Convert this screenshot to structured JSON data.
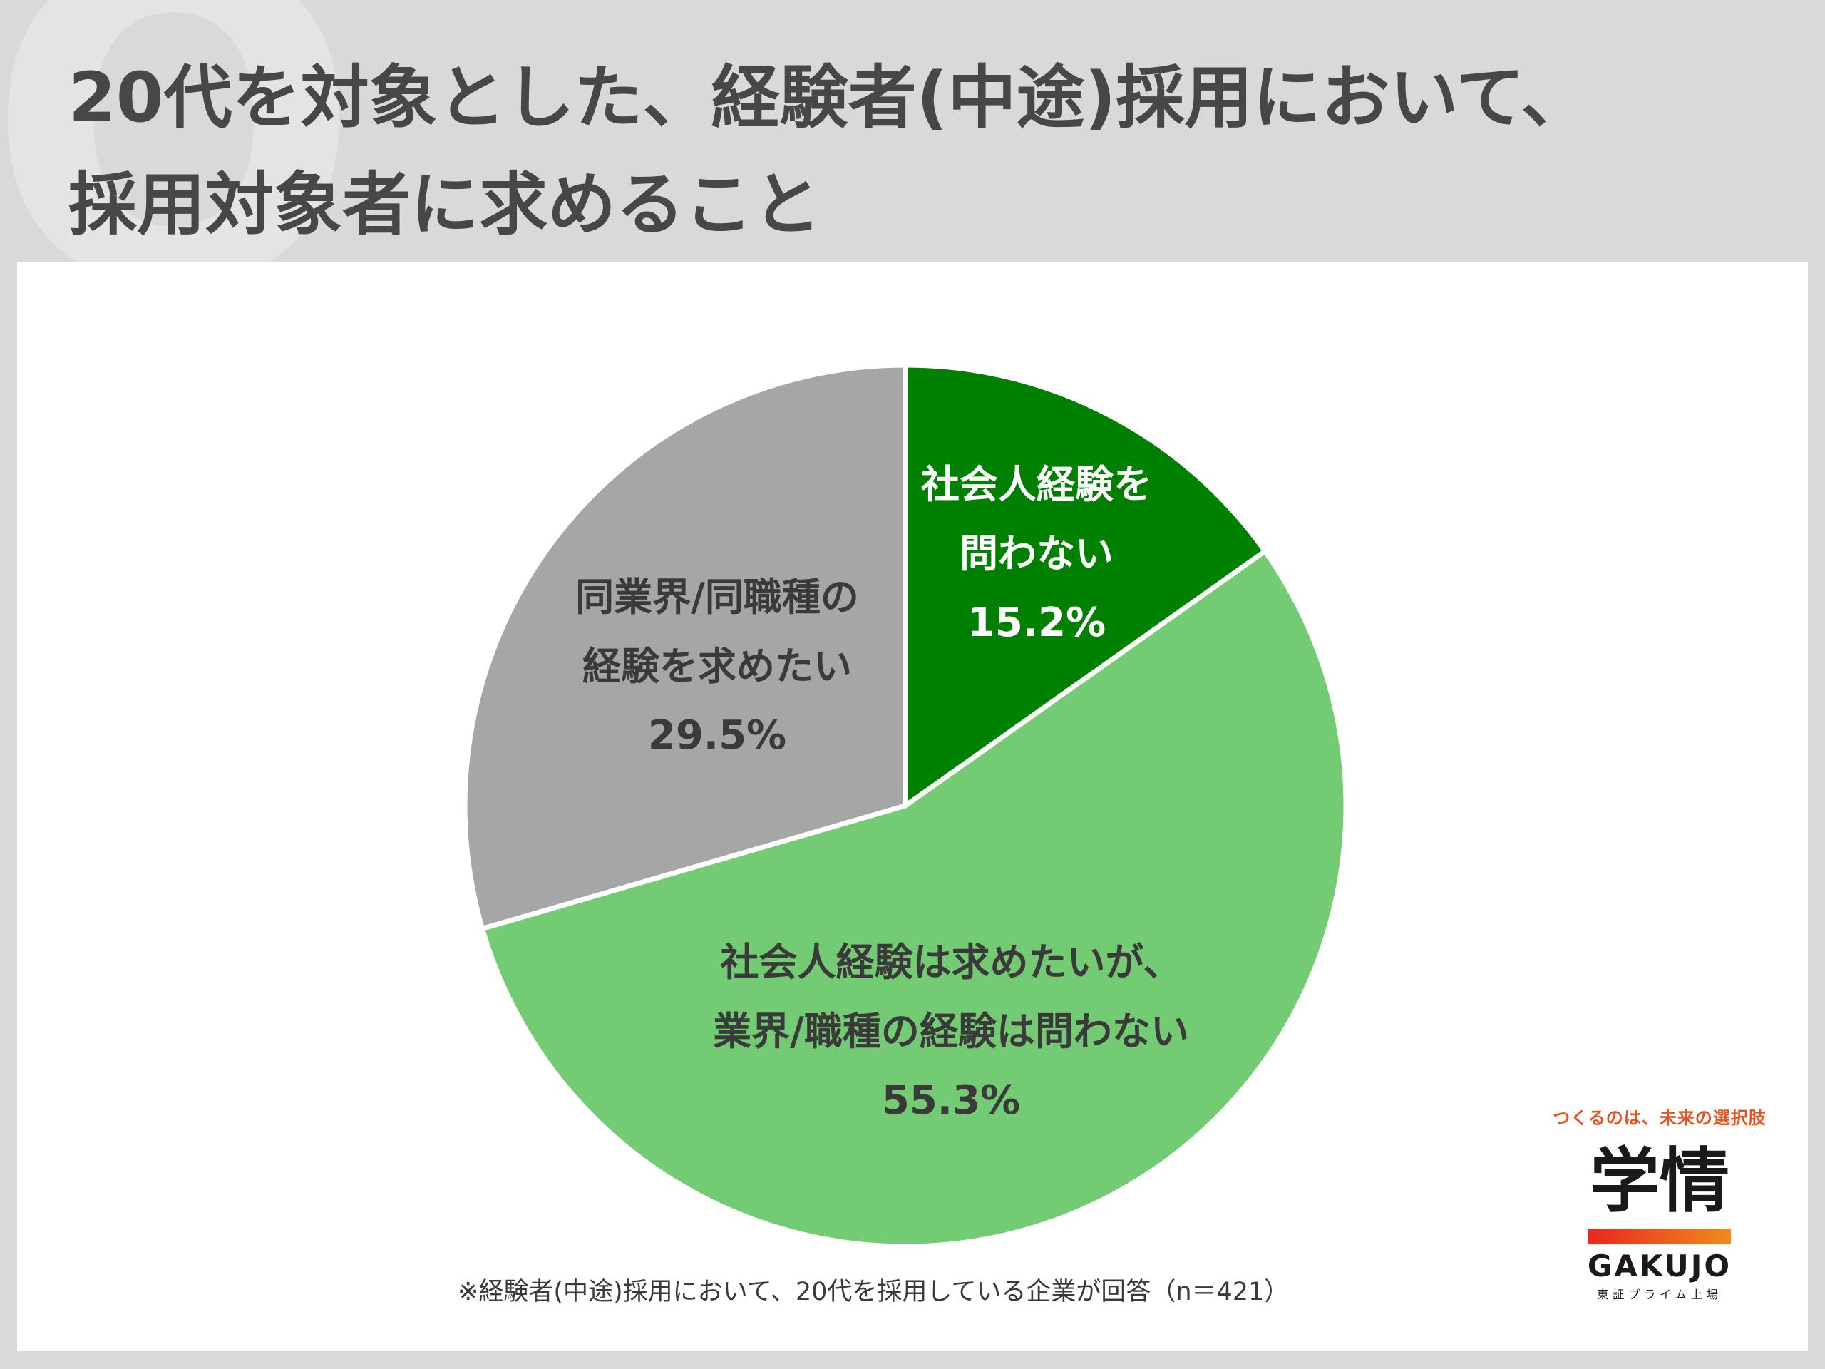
{
  "header": {
    "title_line1": "20代を対象とした、経験者(中途)採用において、",
    "title_line2": "採用対象者に求めること",
    "watermark": "Q"
  },
  "chart_data": {
    "type": "pie",
    "start_angle_deg": 0,
    "direction": "clockwise",
    "slices": [
      {
        "label_lines": [
          "社会人経験を",
          "問わない"
        ],
        "value": 15.2,
        "value_label": "15.2%",
        "color": "#008000",
        "text_color": "#ffffff"
      },
      {
        "label_lines": [
          "社会人経験は求めたいが、",
          "業界/職種の経験は問わない"
        ],
        "value": 55.3,
        "value_label": "55.3%",
        "color": "#73cc73",
        "text_color": "#3a3a3a"
      },
      {
        "label_lines": [
          "同業界/同職種の",
          "経験を求めたい"
        ],
        "value": 29.5,
        "value_label": "29.5%",
        "color": "#a6a6a6",
        "text_color": "#3a3a3a"
      }
    ]
  },
  "footnote": "※経験者(中途)採用において、20代を採用している企業が回答（n＝421）",
  "logo": {
    "tagline": "つくるのは、未来の選択肢",
    "mark": "学情",
    "name": "GAKUJO",
    "sub": "東証プライム上場"
  }
}
